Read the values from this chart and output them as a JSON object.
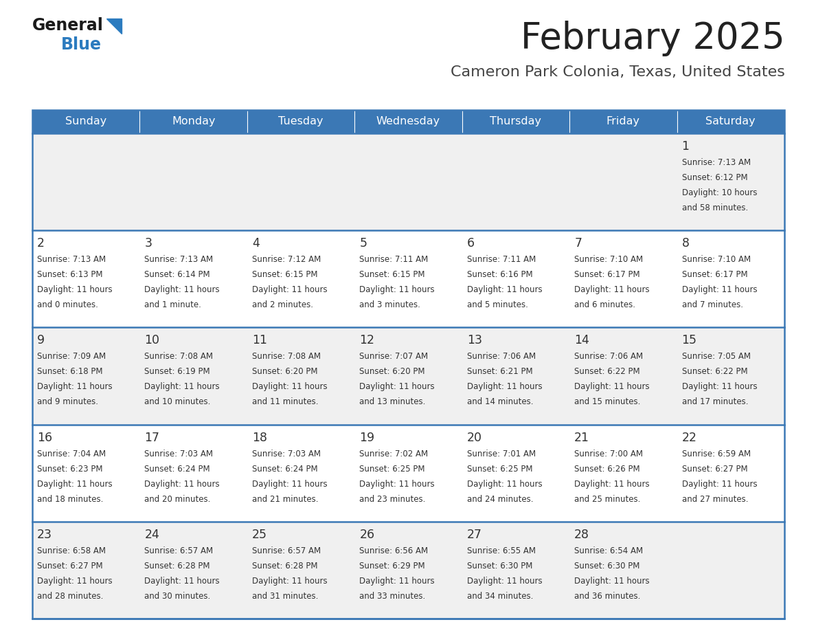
{
  "title": "February 2025",
  "subtitle": "Cameron Park Colonia, Texas, United States",
  "header_bg": "#3b78b5",
  "header_text": "#ffffff",
  "cell_bg_odd": "#f0f0f0",
  "cell_bg_even": "#ffffff",
  "day_names": [
    "Sunday",
    "Monday",
    "Tuesday",
    "Wednesday",
    "Thursday",
    "Friday",
    "Saturday"
  ],
  "border_color": "#3b78b5",
  "number_color": "#333333",
  "info_color": "#333333",
  "title_color": "#222222",
  "subtitle_color": "#444444",
  "calendar": [
    [
      null,
      null,
      null,
      null,
      null,
      null,
      {
        "day": 1,
        "sunrise": "7:13 AM",
        "sunset": "6:12 PM",
        "daylight_line1": "Daylight: 10 hours",
        "daylight_line2": "and 58 minutes."
      }
    ],
    [
      {
        "day": 2,
        "sunrise": "7:13 AM",
        "sunset": "6:13 PM",
        "daylight_line1": "Daylight: 11 hours",
        "daylight_line2": "and 0 minutes."
      },
      {
        "day": 3,
        "sunrise": "7:13 AM",
        "sunset": "6:14 PM",
        "daylight_line1": "Daylight: 11 hours",
        "daylight_line2": "and 1 minute."
      },
      {
        "day": 4,
        "sunrise": "7:12 AM",
        "sunset": "6:15 PM",
        "daylight_line1": "Daylight: 11 hours",
        "daylight_line2": "and 2 minutes."
      },
      {
        "day": 5,
        "sunrise": "7:11 AM",
        "sunset": "6:15 PM",
        "daylight_line1": "Daylight: 11 hours",
        "daylight_line2": "and 3 minutes."
      },
      {
        "day": 6,
        "sunrise": "7:11 AM",
        "sunset": "6:16 PM",
        "daylight_line1": "Daylight: 11 hours",
        "daylight_line2": "and 5 minutes."
      },
      {
        "day": 7,
        "sunrise": "7:10 AM",
        "sunset": "6:17 PM",
        "daylight_line1": "Daylight: 11 hours",
        "daylight_line2": "and 6 minutes."
      },
      {
        "day": 8,
        "sunrise": "7:10 AM",
        "sunset": "6:17 PM",
        "daylight_line1": "Daylight: 11 hours",
        "daylight_line2": "and 7 minutes."
      }
    ],
    [
      {
        "day": 9,
        "sunrise": "7:09 AM",
        "sunset": "6:18 PM",
        "daylight_line1": "Daylight: 11 hours",
        "daylight_line2": "and 9 minutes."
      },
      {
        "day": 10,
        "sunrise": "7:08 AM",
        "sunset": "6:19 PM",
        "daylight_line1": "Daylight: 11 hours",
        "daylight_line2": "and 10 minutes."
      },
      {
        "day": 11,
        "sunrise": "7:08 AM",
        "sunset": "6:20 PM",
        "daylight_line1": "Daylight: 11 hours",
        "daylight_line2": "and 11 minutes."
      },
      {
        "day": 12,
        "sunrise": "7:07 AM",
        "sunset": "6:20 PM",
        "daylight_line1": "Daylight: 11 hours",
        "daylight_line2": "and 13 minutes."
      },
      {
        "day": 13,
        "sunrise": "7:06 AM",
        "sunset": "6:21 PM",
        "daylight_line1": "Daylight: 11 hours",
        "daylight_line2": "and 14 minutes."
      },
      {
        "day": 14,
        "sunrise": "7:06 AM",
        "sunset": "6:22 PM",
        "daylight_line1": "Daylight: 11 hours",
        "daylight_line2": "and 15 minutes."
      },
      {
        "day": 15,
        "sunrise": "7:05 AM",
        "sunset": "6:22 PM",
        "daylight_line1": "Daylight: 11 hours",
        "daylight_line2": "and 17 minutes."
      }
    ],
    [
      {
        "day": 16,
        "sunrise": "7:04 AM",
        "sunset": "6:23 PM",
        "daylight_line1": "Daylight: 11 hours",
        "daylight_line2": "and 18 minutes."
      },
      {
        "day": 17,
        "sunrise": "7:03 AM",
        "sunset": "6:24 PM",
        "daylight_line1": "Daylight: 11 hours",
        "daylight_line2": "and 20 minutes."
      },
      {
        "day": 18,
        "sunrise": "7:03 AM",
        "sunset": "6:24 PM",
        "daylight_line1": "Daylight: 11 hours",
        "daylight_line2": "and 21 minutes."
      },
      {
        "day": 19,
        "sunrise": "7:02 AM",
        "sunset": "6:25 PM",
        "daylight_line1": "Daylight: 11 hours",
        "daylight_line2": "and 23 minutes."
      },
      {
        "day": 20,
        "sunrise": "7:01 AM",
        "sunset": "6:25 PM",
        "daylight_line1": "Daylight: 11 hours",
        "daylight_line2": "and 24 minutes."
      },
      {
        "day": 21,
        "sunrise": "7:00 AM",
        "sunset": "6:26 PM",
        "daylight_line1": "Daylight: 11 hours",
        "daylight_line2": "and 25 minutes."
      },
      {
        "day": 22,
        "sunrise": "6:59 AM",
        "sunset": "6:27 PM",
        "daylight_line1": "Daylight: 11 hours",
        "daylight_line2": "and 27 minutes."
      }
    ],
    [
      {
        "day": 23,
        "sunrise": "6:58 AM",
        "sunset": "6:27 PM",
        "daylight_line1": "Daylight: 11 hours",
        "daylight_line2": "and 28 minutes."
      },
      {
        "day": 24,
        "sunrise": "6:57 AM",
        "sunset": "6:28 PM",
        "daylight_line1": "Daylight: 11 hours",
        "daylight_line2": "and 30 minutes."
      },
      {
        "day": 25,
        "sunrise": "6:57 AM",
        "sunset": "6:28 PM",
        "daylight_line1": "Daylight: 11 hours",
        "daylight_line2": "and 31 minutes."
      },
      {
        "day": 26,
        "sunrise": "6:56 AM",
        "sunset": "6:29 PM",
        "daylight_line1": "Daylight: 11 hours",
        "daylight_line2": "and 33 minutes."
      },
      {
        "day": 27,
        "sunrise": "6:55 AM",
        "sunset": "6:30 PM",
        "daylight_line1": "Daylight: 11 hours",
        "daylight_line2": "and 34 minutes."
      },
      {
        "day": 28,
        "sunrise": "6:54 AM",
        "sunset": "6:30 PM",
        "daylight_line1": "Daylight: 11 hours",
        "daylight_line2": "and 36 minutes."
      },
      null
    ]
  ],
  "logo_general_color": "#1a1a1a",
  "logo_blue_color": "#2b7bbf",
  "logo_triangle_color": "#2b7bbf",
  "fig_width": 11.88,
  "fig_height": 9.18,
  "dpi": 100
}
